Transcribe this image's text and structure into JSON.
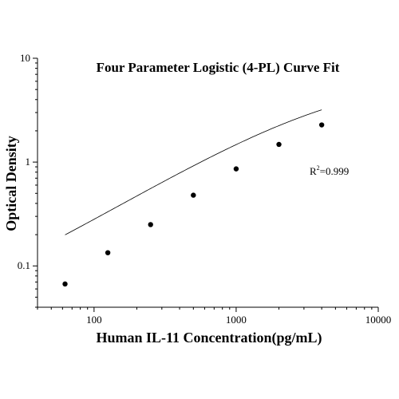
{
  "chart_data": {
    "type": "scatter",
    "title": "Four Parameter Logistic (4-PL) Curve Fit",
    "xlabel": "Human IL-11 Concentration(pg/mL)",
    "ylabel": "Optical Density",
    "x_scale": "log",
    "y_scale": "log",
    "xlim": [
      40,
      10000
    ],
    "ylim": [
      0.04,
      10
    ],
    "x_ticks": [
      100,
      1000,
      10000
    ],
    "x_tick_labels": [
      "100",
      "1000",
      "10000"
    ],
    "y_ticks": [
      0.1,
      1,
      10
    ],
    "y_tick_labels": [
      "0.1",
      "1",
      "10"
    ],
    "grid": false,
    "series": [
      {
        "x": [
          62.5,
          125,
          250,
          500,
          1000,
          2000,
          4000
        ],
        "y": [
          0.067,
          0.134,
          0.25,
          0.48,
          0.86,
          1.48,
          2.28
        ]
      }
    ],
    "fit": {
      "model": "4PL",
      "a": 0.02,
      "d": 7.0,
      "c": 5000,
      "b": 0.83
    },
    "annotation": {
      "base": "R",
      "sup": "2",
      "text": "=0.999"
    },
    "colors": {
      "points": "#000000",
      "curve": "#000000"
    }
  }
}
